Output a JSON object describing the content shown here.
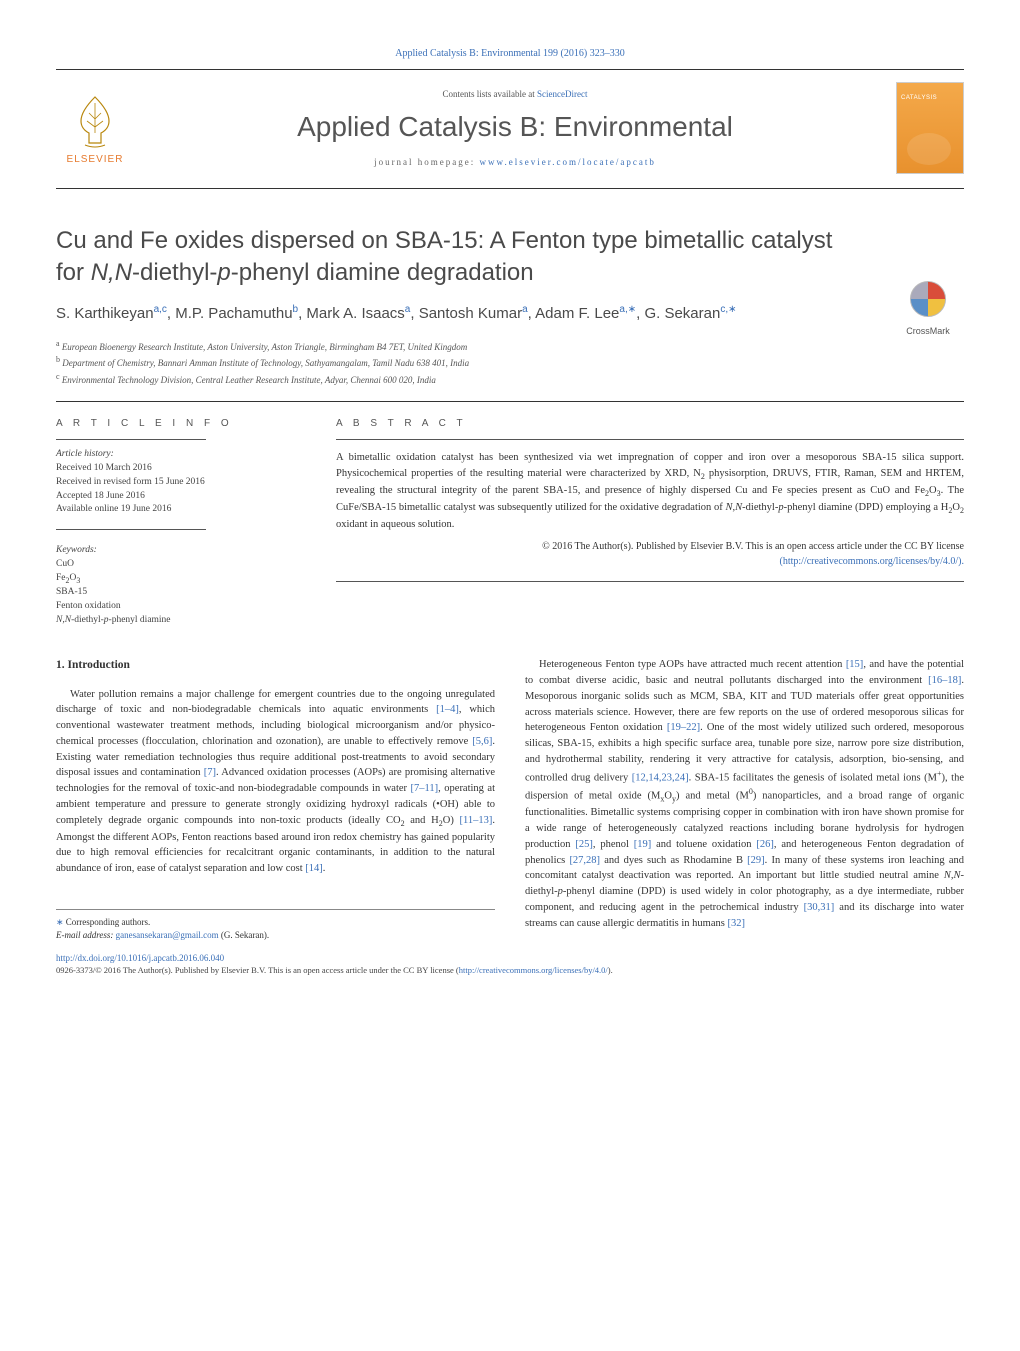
{
  "header": {
    "journal_ref": "Applied Catalysis B: Environmental 199 (2016) 323–330",
    "contents_pre": "Contents lists available at ",
    "contents_link": "ScienceDirect",
    "journal_title": "Applied Catalysis B: Environmental",
    "homepage_pre": "journal homepage: ",
    "homepage_link": "www.elsevier.com/locate/apcatb",
    "elsevier_label": "ELSEVIER",
    "cover_text": "CATALYSIS",
    "crossmark_label": "CrossMark"
  },
  "title_html": "Cu and Fe oxides dispersed on SBA-15: A Fenton type bimetallic catalyst for <em>N,N</em>-diethyl-<em>p</em>-phenyl diamine degradation",
  "authors_html": "S. Karthikeyan<sup>a,c</sup>, M.P. Pachamuthu<sup>b</sup>, Mark A. Isaacs<sup>a</sup>, Santosh Kumar<sup>a</sup>, Adam F. Lee<sup>a,<span class=\"star\">∗</span></sup>, G. Sekaran<sup>c,<span class=\"star\">∗</span></sup>",
  "affiliations": [
    {
      "sup": "a",
      "text": "European Bioenergy Research Institute, Aston University, Aston Triangle, Birmingham B4 7ET, United Kingdom"
    },
    {
      "sup": "b",
      "text": "Department of Chemistry, Bannari Amman Institute of Technology, Sathyamangalam, Tamil Nadu 638 401, India"
    },
    {
      "sup": "c",
      "text": "Environmental Technology Division, Central Leather Research Institute, Adyar, Chennai 600 020, India"
    }
  ],
  "article_info": {
    "heading": "A R T I C L E   I N F O",
    "history_label": "Article history:",
    "history": [
      "Received 10 March 2016",
      "Received in revised form 15 June 2016",
      "Accepted 18 June 2016",
      "Available online 19 June 2016"
    ],
    "keywords_label": "Keywords:",
    "keywords_html": [
      "CuO",
      "Fe<sub>2</sub>O<sub>3</sub>",
      "SBA-15",
      "Fenton oxidation",
      "<em>N,N</em>-diethyl-<em>p</em>-phenyl diamine"
    ]
  },
  "abstract": {
    "heading": "A B S T R A C T",
    "text_html": "A bimetallic oxidation catalyst has been synthesized via wet impregnation of copper and iron over a mesoporous SBA-15 silica support. Physicochemical properties of the resulting material were characterized by XRD, N<sub>2</sub> physisorption, DRUVS, FTIR, Raman, SEM and HRTEM, revealing the structural integrity of the parent SBA-15, and presence of highly dispersed Cu and Fe species present as CuO and Fe<sub>2</sub>O<sub>3</sub>. The CuFe/SBA-15 bimetallic catalyst was subsequently utilized for the oxidative degradation of <em>N,N</em>-diethyl-<em>p</em>-phenyl diamine (DPD) employing a H<sub>2</sub>O<sub>2</sub> oxidant in aqueous solution.",
    "license_pre": "© 2016 The Author(s). Published by Elsevier B.V. This is an open access article under the CC BY license",
    "license_link": "(http://creativecommons.org/licenses/by/4.0/)."
  },
  "intro": {
    "heading": "1.  Introduction",
    "col1_html": "Water pollution remains a major challenge for emergent countries due to the ongoing unregulated discharge of toxic and non-biodegradable chemicals into aquatic environments <a>[1–4]</a>, which conventional wastewater treatment methods, including biological microorganism and/or physico-chemical processes (flocculation, chlorination and ozonation), are unable to effectively remove <a>[5,6]</a>. Existing water remediation technologies thus require additional post-treatments to avoid secondary disposal issues and contamination <a>[7]</a>. Advanced oxidation processes (AOPs) are promising alternative technologies for the removal of toxic-and non-biodegradable compounds in water <a>[7–11]</a>, operating at ambient temperature and pressure to generate strongly oxidizing hydroxyl radicals (•OH) able to completely degrade organic compounds into non-toxic products (ideally CO<sub>2</sub> and H<sub>2</sub>O) <a>[11–13]</a>. Amongst the different AOPs, Fenton reactions based around iron redox chemistry has gained popularity due to high removal efficiencies for recalcitrant organic contaminants, in addition to the natural abundance of iron, ease of catalyst separation and low cost <a>[14]</a>.",
    "col2_html": "Heterogeneous Fenton type AOPs have attracted much recent attention <a>[15]</a>, and have the potential to combat diverse acidic, basic and neutral pollutants discharged into the environment <a>[16–18]</a>. Mesoporous inorganic solids such as MCM, SBA, KIT and TUD materials offer great opportunities across materials science. However, there are few reports on the use of ordered mesoporous silicas for heterogeneous Fenton oxidation <a>[19–22]</a>. One of the most widely utilized such ordered, mesoporous silicas, SBA-15, exhibits a high specific surface area, tunable pore size, narrow pore size distribution, and hydrothermal stability, rendering it very attractive for catalysis, adsorption, bio-sensing, and controlled drug delivery <a>[12,14,23,24]</a>. SBA-15 facilitates the genesis of isolated metal ions (M<sup>+</sup>), the dispersion of metal oxide (M<sub>x</sub>O<sub>y</sub>) and metal (M<sup>0</sup>) nanoparticles, and a broad range of organic functionalities. Bimetallic systems comprising copper in combination with iron have shown promise for a wide range of heterogeneously catalyzed reactions including borane hydrolysis for hydrogen production <a>[25]</a>, phenol <a>[19]</a> and toluene oxidation <a>[26]</a>, and heterogeneous Fenton degradation of phenolics <a>[27,28]</a> and dyes such as Rhodamine B <a>[29]</a>. In many of these systems iron leaching and concomitant catalyst deactivation was reported. An important but little studied neutral amine <em>N,N</em>-diethyl-<em>p</em>-phenyl diamine (DPD) is used widely in color photography, as a dye intermediate, rubber component, and reducing agent in the petrochemical industry <a>[30,31]</a> and its discharge into water streams can cause allergic dermatitis in humans <a>[32]</a>"
  },
  "footnotes": {
    "corr": "Corresponding authors.",
    "email_label": "E-mail address:",
    "email": "ganesansekaran@gmail.com",
    "email_name": "(G. Sekaran)."
  },
  "footer": {
    "doi": "http://dx.doi.org/10.1016/j.apcatb.2016.06.040",
    "copyright_html": "0926-3373/© 2016 The Author(s). Published by Elsevier B.V. This is an open access article under the CC BY license (<a>http://creativecommons.org/licenses/by/4.0/</a>)."
  },
  "colors": {
    "link": "#3a6fb7",
    "accent": "#e67a2e",
    "text": "#333333",
    "heading": "#4a4a4a"
  }
}
